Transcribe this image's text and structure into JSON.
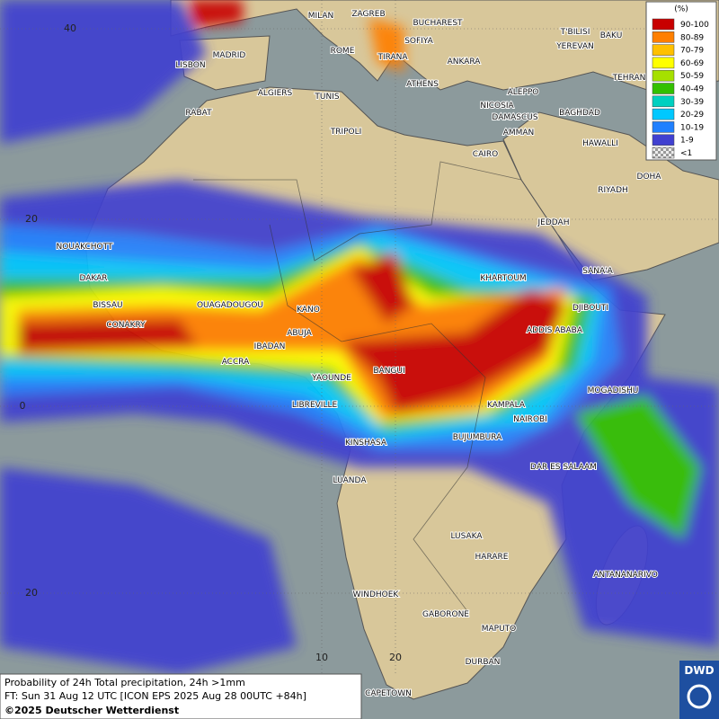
{
  "legend": {
    "title": "(%)",
    "items": [
      {
        "label": "90-100",
        "color": "#c80000"
      },
      {
        "label": "80-89",
        "color": "#ff7f00"
      },
      {
        "label": "70-79",
        "color": "#ffc000"
      },
      {
        "label": "60-69",
        "color": "#ffff00"
      },
      {
        "label": "50-59",
        "color": "#a6e000"
      },
      {
        "label": "40-49",
        "color": "#33c000"
      },
      {
        "label": "30-39",
        "color": "#00d0c0"
      },
      {
        "label": "20-29",
        "color": "#00c8ff"
      },
      {
        "label": "10-19",
        "color": "#2080ff"
      },
      {
        "label": "1-9",
        "color": "#4040d0"
      },
      {
        "label": "<1",
        "color": "#cccccc"
      }
    ]
  },
  "grid_labels": [
    "40",
    "20",
    "0",
    "20",
    "10",
    "20"
  ],
  "cities": [
    "MILAN",
    "ZAGREB",
    "BUCHAREST",
    "T'BILISI",
    "BAKU",
    "MADRID",
    "ROME",
    "SOFIYA",
    "YEREVAN",
    "LISBON",
    "TIRANA",
    "ANKARA",
    "TEHRAN",
    "ALGIERS",
    "TUNIS",
    "ATHENS",
    "ALEPPO",
    "RABAT",
    "NICOSIA",
    "BAGHDAD",
    "TRIPOLI",
    "DAMASCUS",
    "AMMAN",
    "HAWALLI",
    "CAIRO",
    "DOHA",
    "RIYADH",
    "JEDDAH",
    "NOUAKCHOTT",
    "SANA'A",
    "DAKAR",
    "KHARTOUM",
    "BISSAU",
    "OUAGADOUGOU",
    "KANO",
    "DJIBOUTI",
    "CONAKRY",
    "ABUJA",
    "ADDIS ABABA",
    "IBADAN",
    "ACCRA",
    "BANGUI",
    "YAOUNDE",
    "MOGADISHU",
    "LIBREVILLE",
    "KAMPALA",
    "NAIROBI",
    "KINSHASA",
    "BUJUMBURA",
    "DAR ES SALAAM",
    "LUANDA",
    "LUSAKA",
    "HARARE",
    "ANTANANARIVO",
    "WINDHOEK",
    "GABORONE",
    "MAPUTO",
    "DURBAN",
    "CAPETOWN"
  ],
  "footer": {
    "line1": "Probability of 24h Total precipitation, 24h >1mm",
    "line2": "FT: Sun 31 Aug 12 UTC [ICON EPS 2025 Aug 28 00UTC +84h]",
    "copyright": "©2025 Deutscher Wetterdienst"
  },
  "logo": "DWD"
}
